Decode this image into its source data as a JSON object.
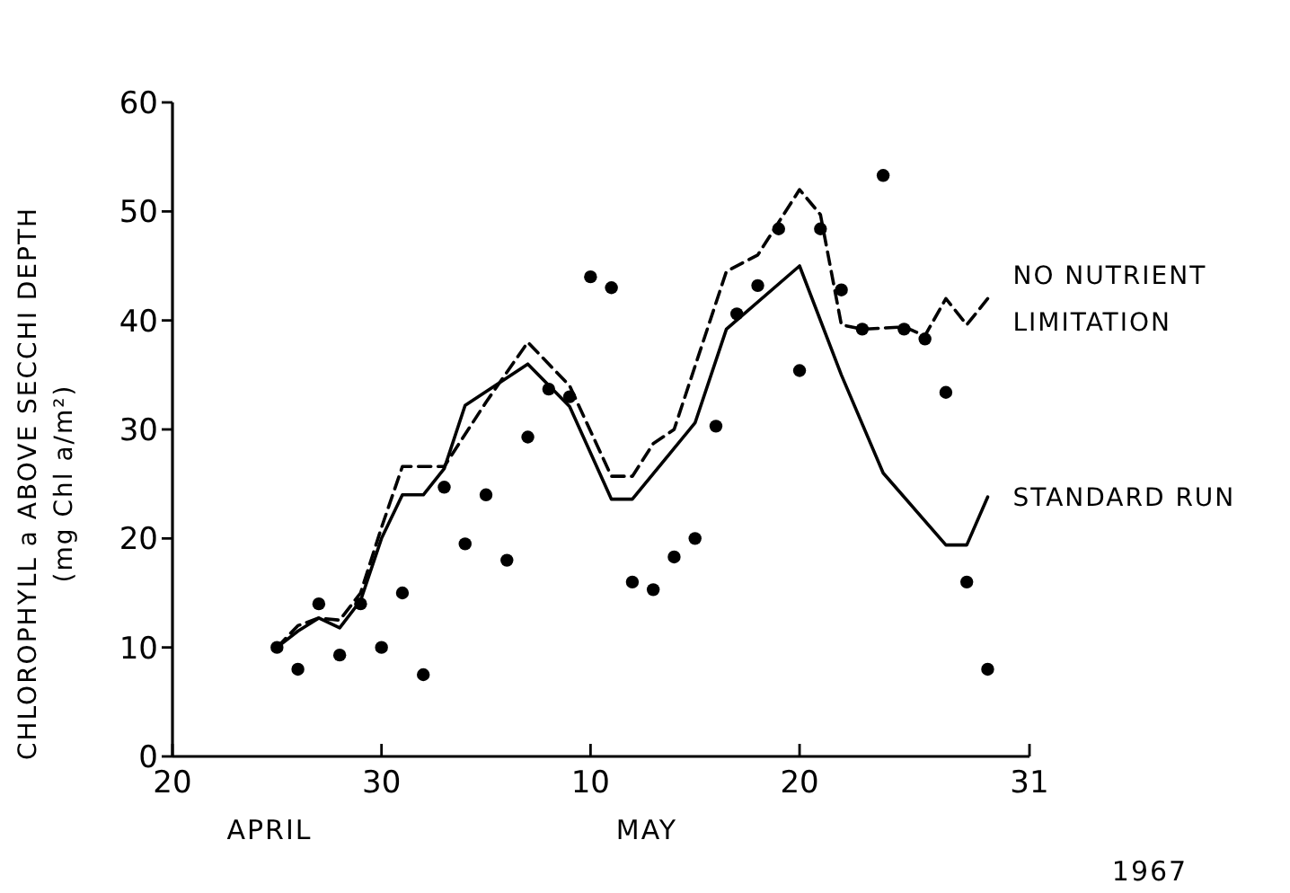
{
  "chart_data": {
    "type": "line",
    "ylabel": "CHLOROPHYLL a ABOVE SECCHI DEPTH\n(mg Chl a/m²)",
    "xlim": [
      "--04-20",
      "--05-31"
    ],
    "xticks": [
      {
        "value": "--04-20",
        "label": "20"
      },
      {
        "value": "--04-30",
        "label": "30"
      },
      {
        "value": "--05-10",
        "label": "10"
      },
      {
        "value": "--05-20",
        "label": "20"
      },
      {
        "value": "--05-31",
        "label": "31"
      }
    ],
    "ylim": [
      0,
      60
    ],
    "yticks": [
      0,
      10,
      20,
      30,
      40,
      50,
      60
    ],
    "grid": false,
    "annotations": [
      "APRIL",
      "MAY",
      "1967"
    ],
    "series": [
      {
        "name": "NO NUTRIENT\nLIMITATION",
        "line_style": "dashed",
        "marker": "none",
        "color": "#000000",
        "x": [
          "--04-25",
          "--04-26",
          "--04-27",
          "--04-28",
          "--04-29",
          "--04-30",
          "--05-01",
          "--05-03",
          "--05-05",
          "--05-07",
          "--05-09",
          "--05-11",
          "--05-12",
          "--05-13",
          "--05-14",
          "--05-16T12:00",
          "--05-18",
          "--05-20",
          "--05-21",
          "--05-22",
          "--05-23",
          "--05-25",
          "--05-26",
          "--05-27",
          "--05-28",
          "--05-29"
        ],
        "values": [
          10,
          12,
          12.7,
          12.5,
          15,
          21,
          26.6,
          26.6,
          32.5,
          38,
          34,
          25.7,
          25.7,
          28.7,
          30,
          44.5,
          46,
          52,
          49.7,
          39.6,
          39.2,
          39.4,
          38.6,
          42,
          39.6,
          42
        ]
      },
      {
        "name": "STANDARD RUN",
        "line_style": "solid",
        "marker": "none",
        "color": "#000000",
        "x": [
          "--04-25",
          "--04-26",
          "--04-27",
          "--04-28",
          "--04-29",
          "--04-30",
          "--05-01",
          "--05-02",
          "--05-03",
          "--05-04",
          "--05-07",
          "--05-09",
          "--05-11",
          "--05-12",
          "--05-15",
          "--05-16T12:00",
          "--05-20",
          "--05-22",
          "--05-24",
          "--05-27",
          "--05-28",
          "--05-29"
        ],
        "values": [
          10,
          11.5,
          12.7,
          11.8,
          14.3,
          20,
          24,
          24,
          26.4,
          32.2,
          36,
          32.1,
          23.6,
          23.6,
          30.6,
          39.2,
          45,
          35,
          26,
          19.4,
          19.4,
          23.8
        ]
      },
      {
        "type": "scatter",
        "marker": "circle",
        "color": "#000000",
        "x": [
          "--04-25",
          "--04-26",
          "--04-27",
          "--04-28",
          "--04-29",
          "--04-30",
          "--05-01",
          "--05-02",
          "--05-03",
          "--05-04",
          "--05-05",
          "--05-06",
          "--05-07",
          "--05-08",
          "--05-09",
          "--05-10",
          "--05-11",
          "--05-12",
          "--05-13",
          "--05-14",
          "--05-15",
          "--05-16",
          "--05-17",
          "--05-18",
          "--05-19",
          "--05-20",
          "--05-21",
          "--05-22",
          "--05-23",
          "--05-24",
          "--05-25",
          "--05-26",
          "--05-27",
          "--05-28",
          "--05-29"
        ],
        "values": [
          10,
          8,
          14,
          9.3,
          14,
          10,
          15,
          7.5,
          24.7,
          19.5,
          24,
          18,
          29.3,
          33.7,
          33,
          44,
          43,
          16,
          15.3,
          18.3,
          20,
          30.3,
          40.6,
          43.2,
          48.4,
          35.4,
          48.4,
          42.8,
          39.2,
          53.3,
          39.2,
          38.3,
          33.4,
          16,
          8
        ]
      }
    ]
  }
}
